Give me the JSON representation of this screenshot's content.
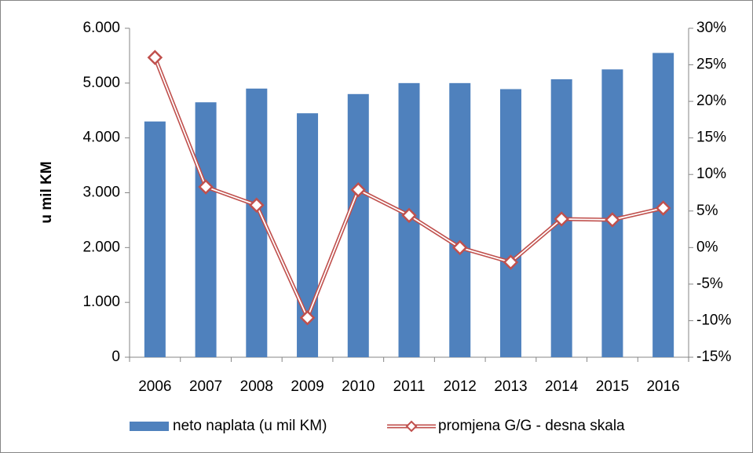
{
  "chart_data": {
    "type": "bar_line",
    "y_label": "u mil KM",
    "categories": [
      "2006",
      "2007",
      "2008",
      "2009",
      "2010",
      "2011",
      "2012",
      "2013",
      "2014",
      "2015",
      "2016"
    ],
    "series": [
      {
        "name": "neto naplata (u mil KM)",
        "type": "bar",
        "color": "#4f81bd",
        "values": [
          4300,
          4650,
          4900,
          4450,
          4800,
          5000,
          5000,
          4890,
          5070,
          5250,
          5550
        ]
      },
      {
        "name": "promjena G/G - desna skala",
        "type": "line",
        "axis": "y2",
        "color": "#c0504d",
        "values": [
          26,
          8.3,
          5.8,
          -9.6,
          7.9,
          4.4,
          0,
          -2,
          3.9,
          3.8,
          5.4
        ]
      }
    ],
    "ylim": [
      0,
      6000
    ],
    "yticks": [
      0,
      {
        "value": 1000,
        "label": "1.000"
      },
      {
        "value": 2000,
        "label": "2.000"
      },
      {
        "value": 3000,
        "label": "3.000"
      },
      {
        "value": 4000,
        "label": "4.000"
      },
      {
        "value": 5000,
        "label": "5.000"
      },
      {
        "value": 6000,
        "label": "6.000"
      }
    ],
    "y2lim": [
      -15,
      30
    ],
    "y2ticks": [
      {
        "value": -15,
        "label": "-15%"
      },
      {
        "value": -10,
        "label": "-10%"
      },
      {
        "value": -5,
        "label": "-5%"
      },
      {
        "value": 0,
        "label": "0%"
      },
      {
        "value": 5,
        "label": "5%"
      },
      {
        "value": 10,
        "label": "10%"
      },
      {
        "value": 15,
        "label": "15%"
      },
      {
        "value": 20,
        "label": "20%"
      },
      {
        "value": 25,
        "label": "25%"
      },
      {
        "value": 30,
        "label": "30%"
      }
    ],
    "grid": false,
    "legend": "bottom"
  }
}
